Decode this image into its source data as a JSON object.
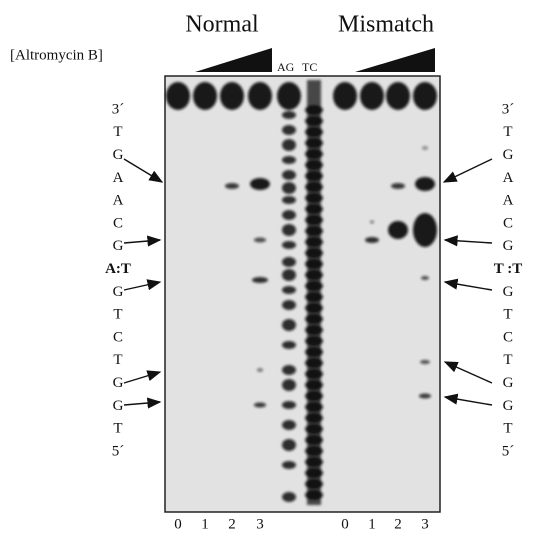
{
  "header": {
    "left_title": "Normal",
    "right_title": "Mismatch",
    "compound": "[Altromycin B]",
    "marker_lanes": [
      "AG",
      "TC"
    ]
  },
  "left_sequence": [
    "3´",
    "T",
    "G",
    "A",
    "A",
    "C",
    "G",
    "A:T",
    "G",
    "T",
    "C",
    "T",
    "G",
    "G",
    "T",
    "5´"
  ],
  "right_sequence": [
    "3´",
    "T",
    "G",
    "A",
    "A",
    "C",
    "G",
    "T :T",
    "G",
    "T",
    "C",
    "T",
    "G",
    "G",
    "T",
    "5´"
  ],
  "lane_labels": [
    "0",
    "1",
    "2",
    "3",
    "0",
    "1",
    "2",
    "3"
  ]
}
